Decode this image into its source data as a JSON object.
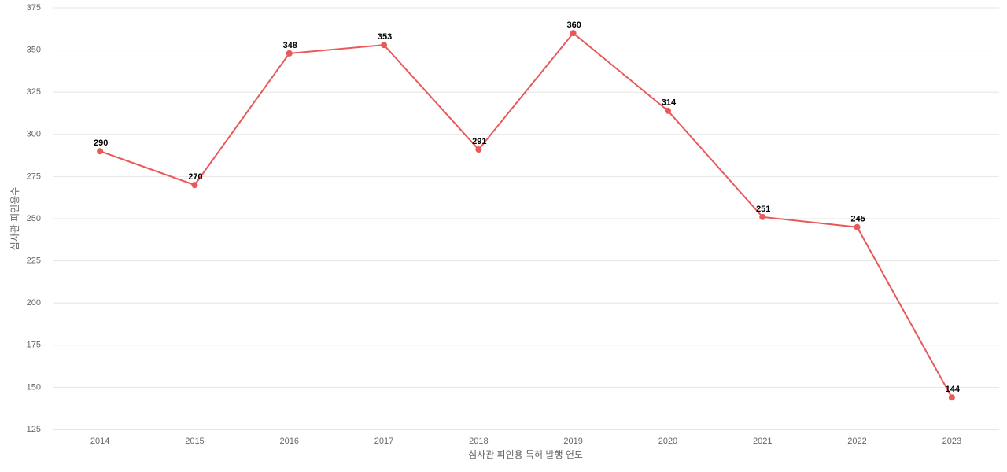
{
  "chart_data": {
    "type": "line",
    "x_label": "심사관 피인용 특허 발행 연도",
    "y_label": "심사관 피인용수",
    "categories": [
      "2014",
      "2015",
      "2016",
      "2017",
      "2018",
      "2019",
      "2020",
      "2021",
      "2022",
      "2023"
    ],
    "series": [
      {
        "name": "심사관 피인용수",
        "color": "#e85a5a",
        "values": [
          290,
          270,
          348,
          353,
          291,
          360,
          314,
          251,
          245,
          144
        ]
      }
    ],
    "ylim": [
      125,
      375
    ],
    "yticks": [
      125,
      150,
      175,
      200,
      225,
      250,
      275,
      300,
      325,
      350,
      375
    ],
    "grid": true
  }
}
